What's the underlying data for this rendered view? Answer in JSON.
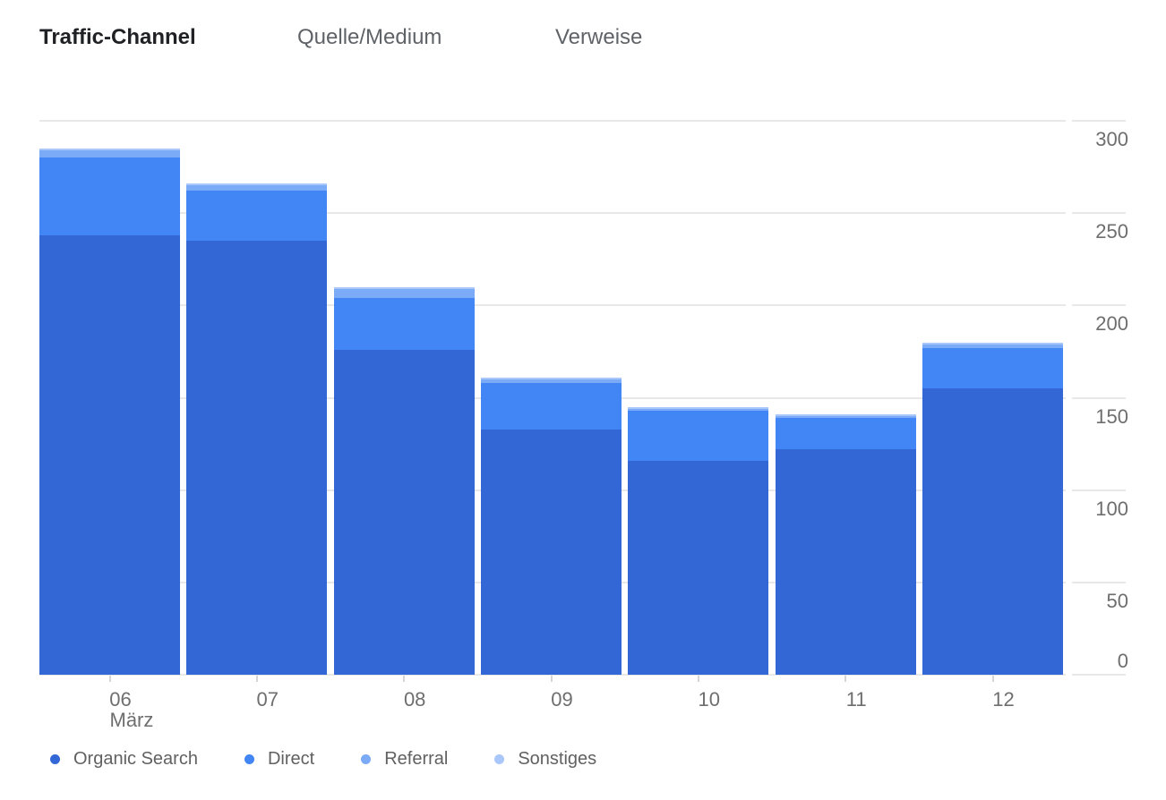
{
  "tabs": {
    "items": [
      {
        "label": "Traffic-Channel",
        "active": true
      },
      {
        "label": "Quelle/Medium",
        "active": false
      },
      {
        "label": "Verweise",
        "active": false
      }
    ]
  },
  "chart_data": {
    "type": "bar",
    "stacked": true,
    "title": "Traffic-Channel",
    "categories": [
      "06",
      "07",
      "08",
      "09",
      "10",
      "11",
      "12"
    ],
    "x_sublabel": "März",
    "x_sublabel_category": "06",
    "series": [
      {
        "name": "Organic Search",
        "color": "#3367D6",
        "values": [
          238,
          235,
          176,
          133,
          116,
          122,
          155
        ]
      },
      {
        "name": "Direct",
        "color": "#4285F4",
        "values": [
          42,
          27,
          28,
          25,
          27,
          17,
          22
        ]
      },
      {
        "name": "Referral",
        "color": "#7BAAF7",
        "values": [
          4,
          3,
          5,
          2,
          1,
          1,
          2
        ]
      },
      {
        "name": "Sonstiges",
        "color": "#A9C7FA",
        "values": [
          1,
          1,
          1,
          1,
          1,
          1,
          1
        ]
      }
    ],
    "y_ticks": [
      0,
      50,
      100,
      150,
      200,
      250,
      300
    ],
    "ylim": [
      0,
      300
    ],
    "grid": true,
    "legend_position": "bottom",
    "legend": [
      "Organic Search",
      "Direct",
      "Referral",
      "Sonstiges"
    ],
    "colors": {
      "gridline": "#e8e8e8",
      "axis_text": "#6e6e6e",
      "legend_text": "#616161",
      "tab_active": "#202124",
      "tab_inactive": "#5f6368"
    }
  }
}
